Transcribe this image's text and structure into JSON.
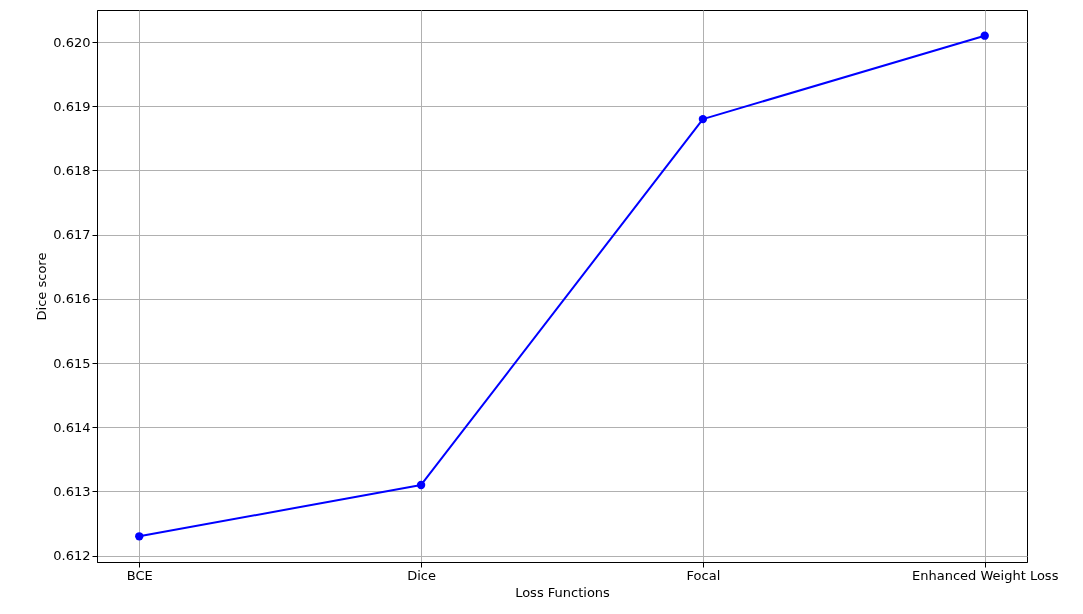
{
  "chart_data": {
    "type": "line",
    "xlabel": "Loss Functions",
    "ylabel": "Dice score",
    "categories": [
      "BCE",
      "Dice",
      "Focal",
      "Enhanced Weight Loss"
    ],
    "series": [
      {
        "color": "#0000ff",
        "values": [
          0.6123,
          0.6131,
          0.6188,
          0.6201
        ]
      }
    ],
    "ylim": [
      0.6119,
      0.6205
    ],
    "yticks": [
      0.612,
      0.613,
      0.614,
      0.615,
      0.616,
      0.617,
      0.618,
      0.619,
      {
        "value": 0.62,
        "label": "0.620"
      }
    ],
    "grid": true,
    "marker": "circle",
    "line_style": "solid"
  }
}
